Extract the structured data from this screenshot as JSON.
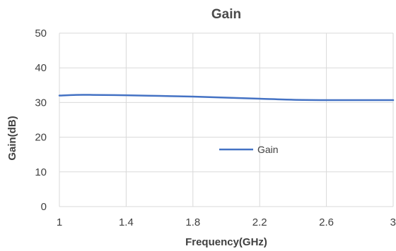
{
  "chart_data": {
    "type": "line",
    "title": "Gain",
    "xlabel": "Frequency(GHz)",
    "ylabel": "Gain(dB)",
    "xlim": [
      1,
      3
    ],
    "ylim": [
      0,
      50
    ],
    "x_ticks": [
      "1",
      "1.4",
      "1.8",
      "2.2",
      "2.6",
      "3"
    ],
    "y_ticks": [
      "0",
      "10",
      "20",
      "30",
      "40",
      "50"
    ],
    "grid": true,
    "legend_position": "center-right",
    "series": [
      {
        "name": "Gain",
        "color": "#4472c4",
        "x": [
          1.0,
          1.1,
          1.2,
          1.4,
          1.6,
          1.8,
          2.0,
          2.2,
          2.4,
          2.6,
          2.8,
          3.0
        ],
        "y": [
          32.0,
          32.2,
          32.2,
          32.1,
          31.9,
          31.7,
          31.4,
          31.1,
          30.8,
          30.7,
          30.7,
          30.7
        ]
      }
    ]
  }
}
